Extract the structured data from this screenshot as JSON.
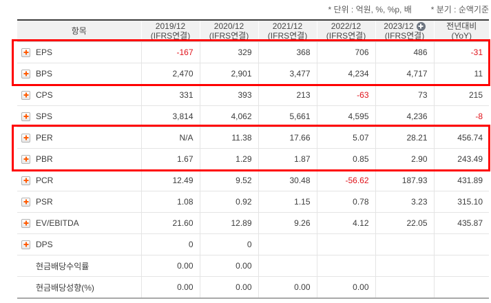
{
  "notes": {
    "unit": "* 단위 : 억원, %, %p, 배",
    "basis": "* 분기 : 순액기준"
  },
  "colors": {
    "negative_value": "#e01119",
    "highlight_border": "#ff0000",
    "expand_plus_orange": "#ff5a00",
    "header_bg": "#f1f1f1",
    "add_circle_gray": "#6d7580"
  },
  "table": {
    "item_header": "항목",
    "columns": [
      {
        "line1": "2019/12",
        "line2": "(IFRS연결)",
        "add_icon": false
      },
      {
        "line1": "2020/12",
        "line2": "(IFRS연결)",
        "add_icon": false
      },
      {
        "line1": "2021/12",
        "line2": "(IFRS연결)",
        "add_icon": false
      },
      {
        "line1": "2022/12",
        "line2": "(IFRS연결)",
        "add_icon": false
      },
      {
        "line1": "2023/12",
        "line2": "(IFRS연결)",
        "add_icon": true
      },
      {
        "line1": "전년대비",
        "line2": "(YoY)",
        "add_icon": false
      }
    ],
    "rows": [
      {
        "label": "EPS",
        "expandable": true,
        "values": [
          "-167",
          "329",
          "368",
          "706",
          "486",
          "-31"
        ]
      },
      {
        "label": "BPS",
        "expandable": true,
        "values": [
          "2,470",
          "2,901",
          "3,477",
          "4,234",
          "4,717",
          "11"
        ]
      },
      {
        "label": "CPS",
        "expandable": true,
        "values": [
          "331",
          "393",
          "213",
          "-63",
          "73",
          "215"
        ]
      },
      {
        "label": "SPS",
        "expandable": true,
        "values": [
          "3,814",
          "4,062",
          "5,661",
          "4,595",
          "4,236",
          "-8"
        ]
      },
      {
        "label": "PER",
        "expandable": true,
        "values": [
          "N/A",
          "11.38",
          "17.66",
          "5.07",
          "28.21",
          "456.74"
        ]
      },
      {
        "label": "PBR",
        "expandable": true,
        "values": [
          "1.67",
          "1.29",
          "1.87",
          "0.85",
          "2.90",
          "243.49"
        ]
      },
      {
        "label": "PCR",
        "expandable": true,
        "values": [
          "12.49",
          "9.52",
          "30.48",
          "-56.62",
          "187.93",
          "431.89"
        ]
      },
      {
        "label": "PSR",
        "expandable": true,
        "values": [
          "1.08",
          "0.92",
          "1.15",
          "0.78",
          "3.23",
          "315.10"
        ]
      },
      {
        "label": "EV/EBITDA",
        "expandable": true,
        "values": [
          "21.60",
          "12.89",
          "9.26",
          "4.12",
          "22.05",
          "435.87"
        ]
      },
      {
        "label": "DPS",
        "expandable": true,
        "values": [
          "0",
          "0",
          "",
          "",
          "",
          ""
        ]
      },
      {
        "label": "현금배당수익률",
        "expandable": false,
        "values": [
          "0.00",
          "0.00",
          "",
          "",
          "",
          ""
        ]
      },
      {
        "label": "현금배당성향(%)",
        "expandable": false,
        "values": [
          "0.00",
          "0.00",
          "0.00",
          "0.00",
          "",
          ""
        ]
      }
    ],
    "highlight_groups": [
      [
        "EPS",
        "BPS"
      ],
      [
        "PER",
        "PBR"
      ]
    ]
  }
}
